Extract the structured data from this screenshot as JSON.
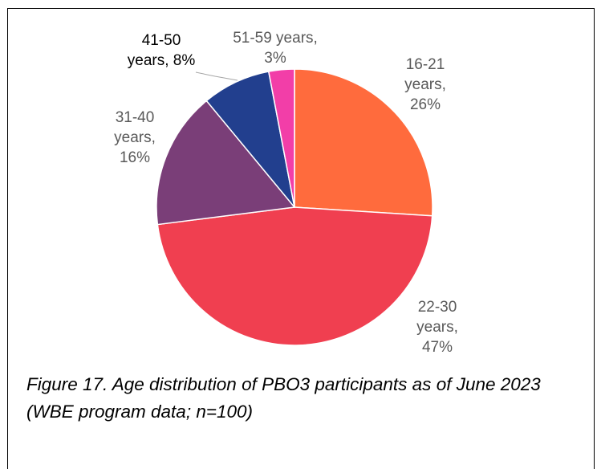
{
  "chart_data": {
    "type": "pie",
    "start_angle_deg": 0,
    "direction": "clockwise",
    "slices": [
      {
        "label": "16-21 years, 26%",
        "lines": [
          "16-21",
          "years,",
          "26%"
        ],
        "value": 26,
        "color": "#FF6B3D"
      },
      {
        "label": "22-30 years, 47%",
        "lines": [
          "22-30",
          "years,",
          "47%"
        ],
        "value": 47,
        "color": "#F03F50"
      },
      {
        "label": "31-40 years, 16%",
        "lines": [
          "31-40",
          "years,",
          "16%"
        ],
        "value": 16,
        "color": "#7A3E78"
      },
      {
        "label": "41-50 years, 8%",
        "lines": [
          "41-50",
          "years, 8%"
        ],
        "value": 8,
        "color": "#223F8E"
      },
      {
        "label": "51-59 years, 3%",
        "lines": [
          "51-59 years,",
          "3%"
        ],
        "value": 3,
        "color": "#F23EA8"
      }
    ],
    "label_colors": {
      "dark": "#000000",
      "muted": "#595959"
    },
    "legend": "none"
  },
  "caption": "Figure 17. Age distribution of PBO3 participants as of June 2023 (WBE program data; n=100)"
}
